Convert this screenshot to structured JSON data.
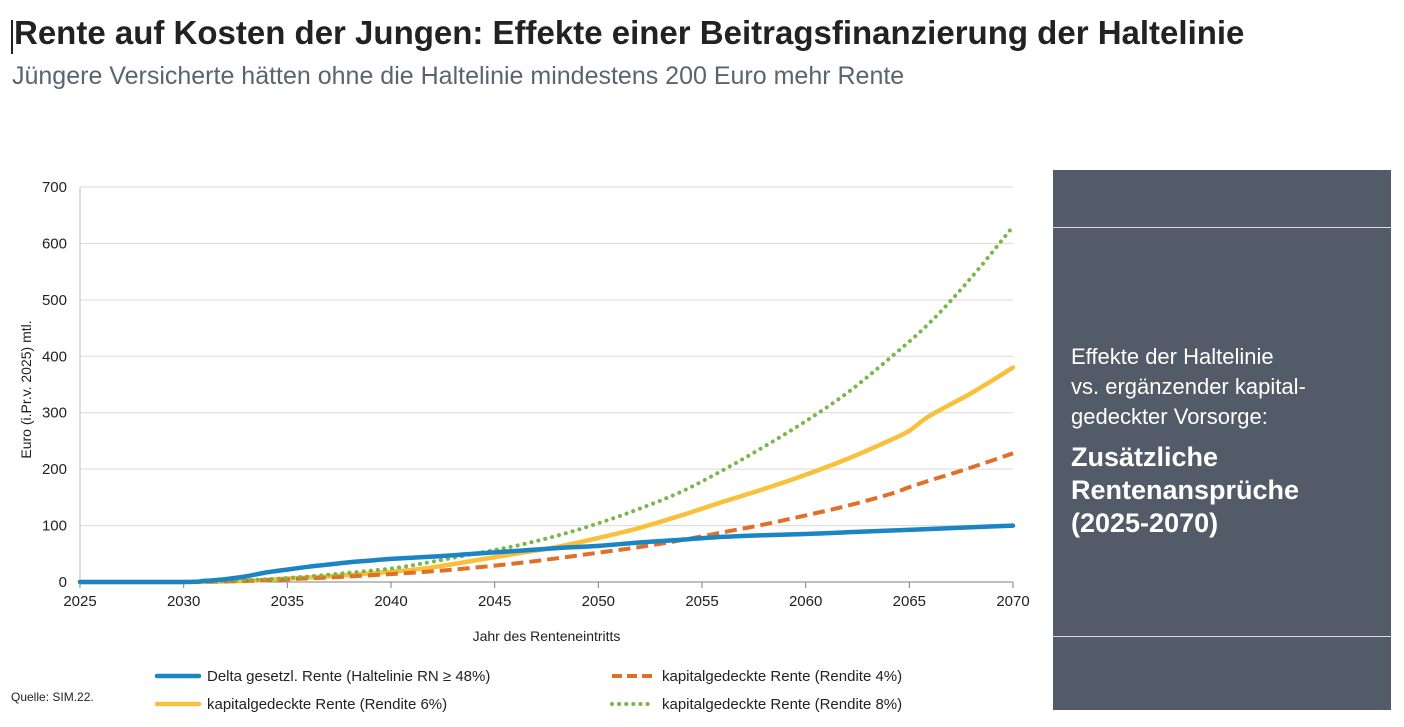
{
  "title": "Rente auf Kosten der Jungen: Effekte einer Beitragsfinanzierung der Haltelinie",
  "subtitle": "Jüngere Versicherte hätten ohne die Haltelinie mindestens 200 Euro mehr Rente",
  "source": "Quelle: SIM.22.",
  "side_panel": {
    "lines": [
      "Effekte der Haltelinie",
      "vs. ergänzender kapital-",
      "gedeckter Vorsorge:"
    ],
    "bold_lines": [
      "Zusätzliche",
      "Rentenansprüche",
      "(2025-2070)"
    ],
    "background": "#535b69"
  },
  "chart_data": {
    "type": "line",
    "xlabel": "Jahr des Renteneintritts",
    "ylabel": "Euro (i.Pr.v. 2025) mtl.",
    "xlim": [
      2025,
      2070
    ],
    "ylim": [
      0,
      700
    ],
    "xticks": [
      2025,
      2030,
      2035,
      2040,
      2045,
      2050,
      2055,
      2060,
      2065,
      2070
    ],
    "yticks": [
      0,
      100,
      200,
      300,
      400,
      500,
      600,
      700
    ],
    "grid": "horizontal",
    "legend_position": "bottom",
    "series": [
      {
        "name": "Delta gesetzl. Rente (Haltelinie RN ≥ 48%)",
        "color": "#1b84c3",
        "style": "solid",
        "x": [
          2025,
          2030,
          2031,
          2032,
          2033,
          2034,
          2035,
          2036,
          2037,
          2038,
          2039,
          2040,
          2042,
          2044,
          2046,
          2048,
          2050,
          2052,
          2054,
          2056,
          2058,
          2060,
          2062,
          2064,
          2066,
          2068,
          2070
        ],
        "y": [
          0,
          0,
          2,
          5,
          10,
          17,
          22,
          27,
          31,
          35,
          38,
          41,
          45,
          50,
          55,
          60,
          64,
          70,
          75,
          80,
          83,
          85,
          88,
          91,
          94,
          97,
          100
        ]
      },
      {
        "name": "kapitalgedeckte Rente (Rendite 4%)",
        "color": "#e07028",
        "style": "dashed",
        "x": [
          2025,
          2030,
          2033,
          2035,
          2037,
          2040,
          2043,
          2046,
          2048,
          2050,
          2052,
          2054,
          2056,
          2058,
          2060,
          2062,
          2064,
          2065,
          2066,
          2068,
          2070
        ],
        "y": [
          0,
          0,
          2,
          5,
          8,
          14,
          22,
          33,
          42,
          52,
          62,
          74,
          88,
          102,
          118,
          135,
          155,
          168,
          180,
          203,
          228
        ]
      },
      {
        "name": "kapitalgedeckte Rente (Rendite 6%)",
        "color": "#f8c13b",
        "style": "solid",
        "x": [
          2025,
          2030,
          2033,
          2035,
          2037,
          2040,
          2042,
          2044,
          2046,
          2048,
          2050,
          2052,
          2054,
          2056,
          2058,
          2060,
          2062,
          2064,
          2065,
          2066,
          2068,
          2070
        ],
        "y": [
          0,
          0,
          2,
          6,
          10,
          18,
          26,
          38,
          50,
          62,
          78,
          96,
          118,
          142,
          165,
          190,
          218,
          250,
          268,
          295,
          335,
          380
        ]
      },
      {
        "name": "kapitalgedeckte Rente (Rendite 8%)",
        "color": "#7ab648",
        "style": "dotted",
        "x": [
          2025,
          2030,
          2033,
          2035,
          2037,
          2040,
          2042,
          2044,
          2046,
          2048,
          2050,
          2052,
          2054,
          2056,
          2058,
          2060,
          2062,
          2064,
          2066,
          2068,
          2070
        ],
        "y": [
          0,
          0,
          3,
          7,
          13,
          24,
          36,
          50,
          64,
          82,
          104,
          130,
          160,
          198,
          240,
          285,
          335,
          395,
          460,
          540,
          630
        ]
      }
    ]
  }
}
